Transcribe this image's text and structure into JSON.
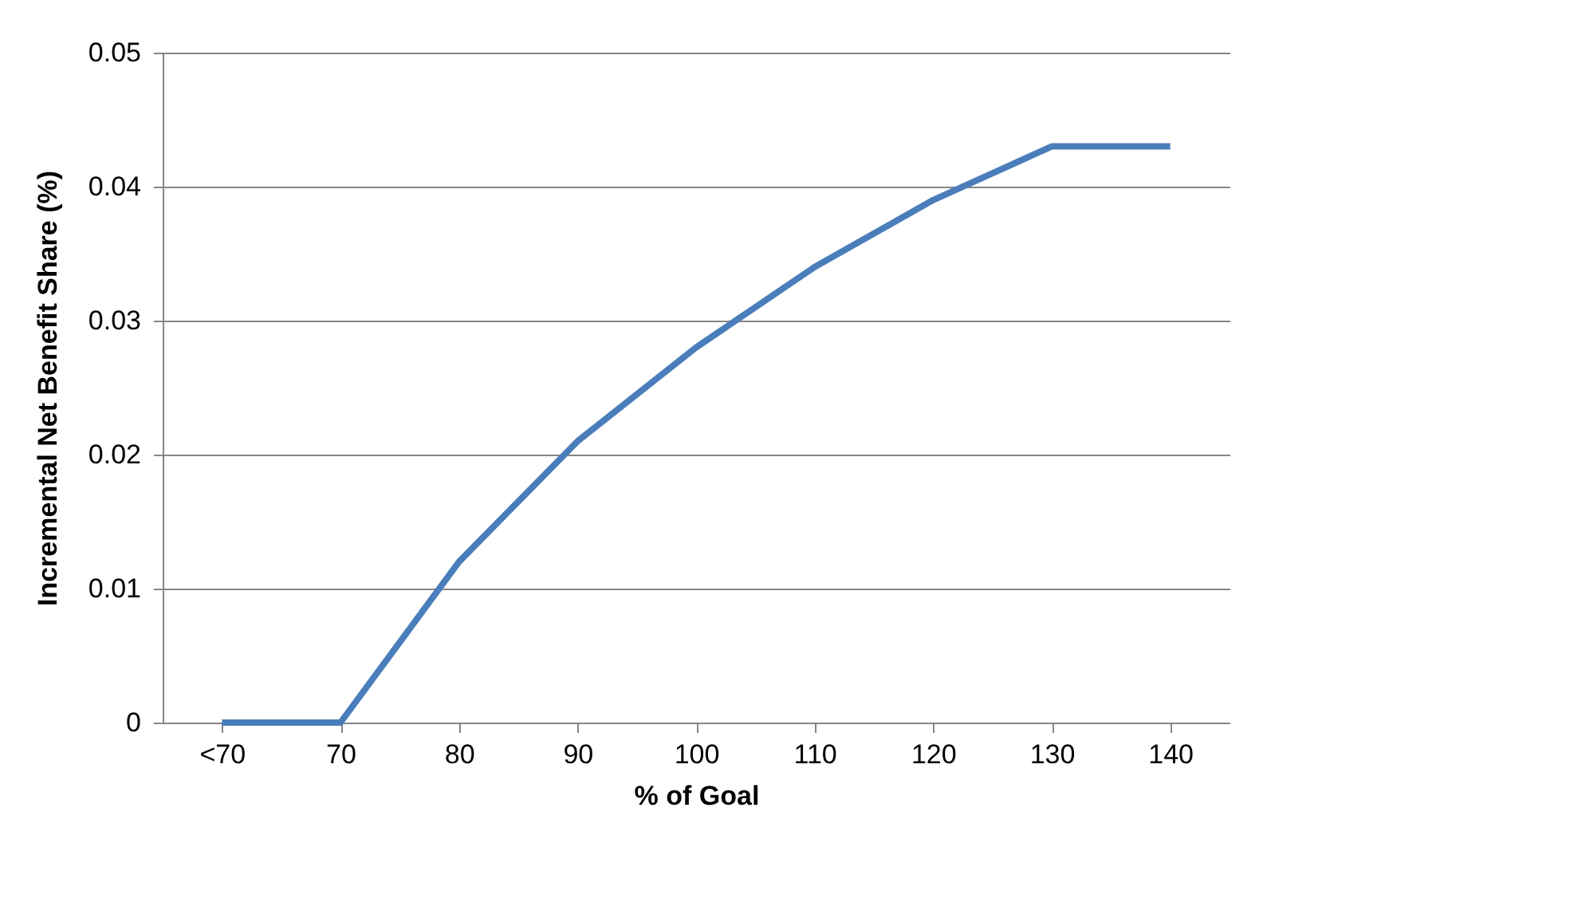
{
  "chart_data": {
    "type": "line",
    "xlabel": "% of Goal",
    "ylabel": "Incremental Net Benefit Share (%)",
    "categories": [
      "<70",
      "70",
      "80",
      "90",
      "100",
      "110",
      "120",
      "130",
      "140"
    ],
    "series": [
      {
        "color": "#4a7ebb",
        "values": [
          0,
          0,
          0.012,
          0.021,
          0.028,
          0.034,
          0.039,
          0.043,
          0.043
        ]
      }
    ],
    "ylim": [
      0,
      0.05
    ],
    "yticks": [
      0,
      0.01,
      0.02,
      0.03,
      0.04,
      0.05
    ],
    "grid": "y",
    "marker": "none",
    "line_style": "solid"
  }
}
